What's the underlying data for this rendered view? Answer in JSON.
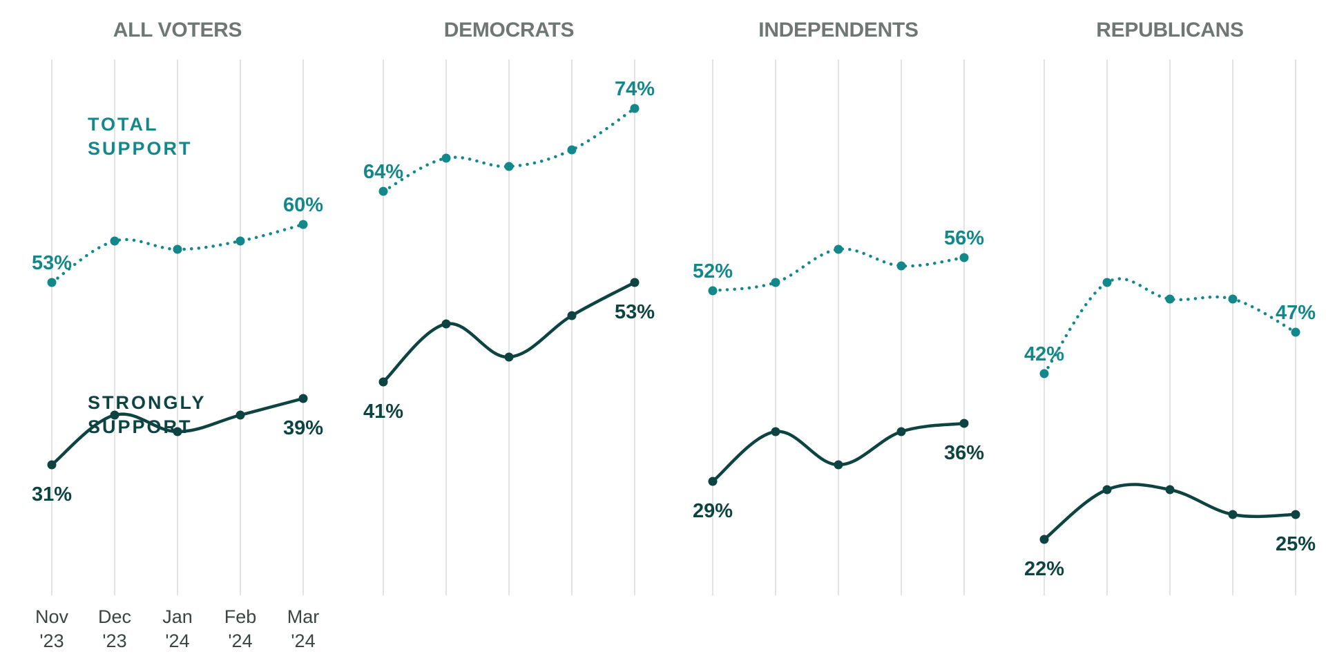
{
  "chart_data": {
    "type": "line",
    "x": [
      "Nov '23",
      "Dec '23",
      "Jan '24",
      "Feb '24",
      "Mar '24"
    ],
    "x_ticks": [
      {
        "month": "Nov",
        "year": "'23"
      },
      {
        "month": "Dec",
        "year": "'23"
      },
      {
        "month": "Jan",
        "year": "'24"
      },
      {
        "month": "Feb",
        "year": "'24"
      },
      {
        "month": "Mar",
        "year": "'24"
      }
    ],
    "ylim": [
      0,
      100
    ],
    "grid": "vertical",
    "colors": {
      "total_support": "#12888a",
      "strongly_support": "#0d4442",
      "title": "#6f7774",
      "gridline": "#d9dcdb"
    },
    "series_labels": {
      "total": [
        "TOTAL",
        "SUPPORT"
      ],
      "strong": [
        "STRONGLY",
        "SUPPORT"
      ]
    },
    "panels": [
      {
        "title": "ALL VOTERS",
        "series": [
          {
            "name": "TOTAL SUPPORT",
            "style": "dotted",
            "values": [
              53,
              58,
              57,
              58,
              60
            ],
            "labels": [
              "53%",
              "",
              "",
              "",
              "60%"
            ]
          },
          {
            "name": "STRONGLY SUPPORT",
            "style": "solid",
            "values": [
              31,
              37,
              35,
              37,
              39
            ],
            "labels": [
              "31%",
              "",
              "",
              "",
              "39%"
            ]
          }
        ]
      },
      {
        "title": "DEMOCRATS",
        "series": [
          {
            "name": "TOTAL SUPPORT",
            "style": "dotted",
            "values": [
              64,
              68,
              67,
              69,
              74
            ],
            "labels": [
              "64%",
              "",
              "",
              "",
              "74%"
            ]
          },
          {
            "name": "STRONGLY SUPPORT",
            "style": "solid",
            "values": [
              41,
              48,
              44,
              49,
              53
            ],
            "labels": [
              "41%",
              "",
              "",
              "",
              "53%"
            ]
          }
        ]
      },
      {
        "title": "INDEPENDENTS",
        "series": [
          {
            "name": "TOTAL SUPPORT",
            "style": "dotted",
            "values": [
              52,
              53,
              57,
              55,
              56
            ],
            "labels": [
              "52%",
              "",
              "",
              "",
              "56%"
            ]
          },
          {
            "name": "STRONGLY SUPPORT",
            "style": "solid",
            "values": [
              29,
              35,
              31,
              35,
              36
            ],
            "labels": [
              "29%",
              "",
              "",
              "",
              "36%"
            ]
          }
        ]
      },
      {
        "title": "REPUBLICANS",
        "series": [
          {
            "name": "TOTAL SUPPORT",
            "style": "dotted",
            "values": [
              42,
              53,
              51,
              51,
              47
            ],
            "labels": [
              "42%",
              "",
              "",
              "",
              "47%"
            ]
          },
          {
            "name": "STRONGLY SUPPORT",
            "style": "solid",
            "values": [
              22,
              28,
              28,
              25,
              25
            ],
            "labels": [
              "22%",
              "",
              "",
              "",
              "25%"
            ]
          }
        ]
      }
    ]
  }
}
